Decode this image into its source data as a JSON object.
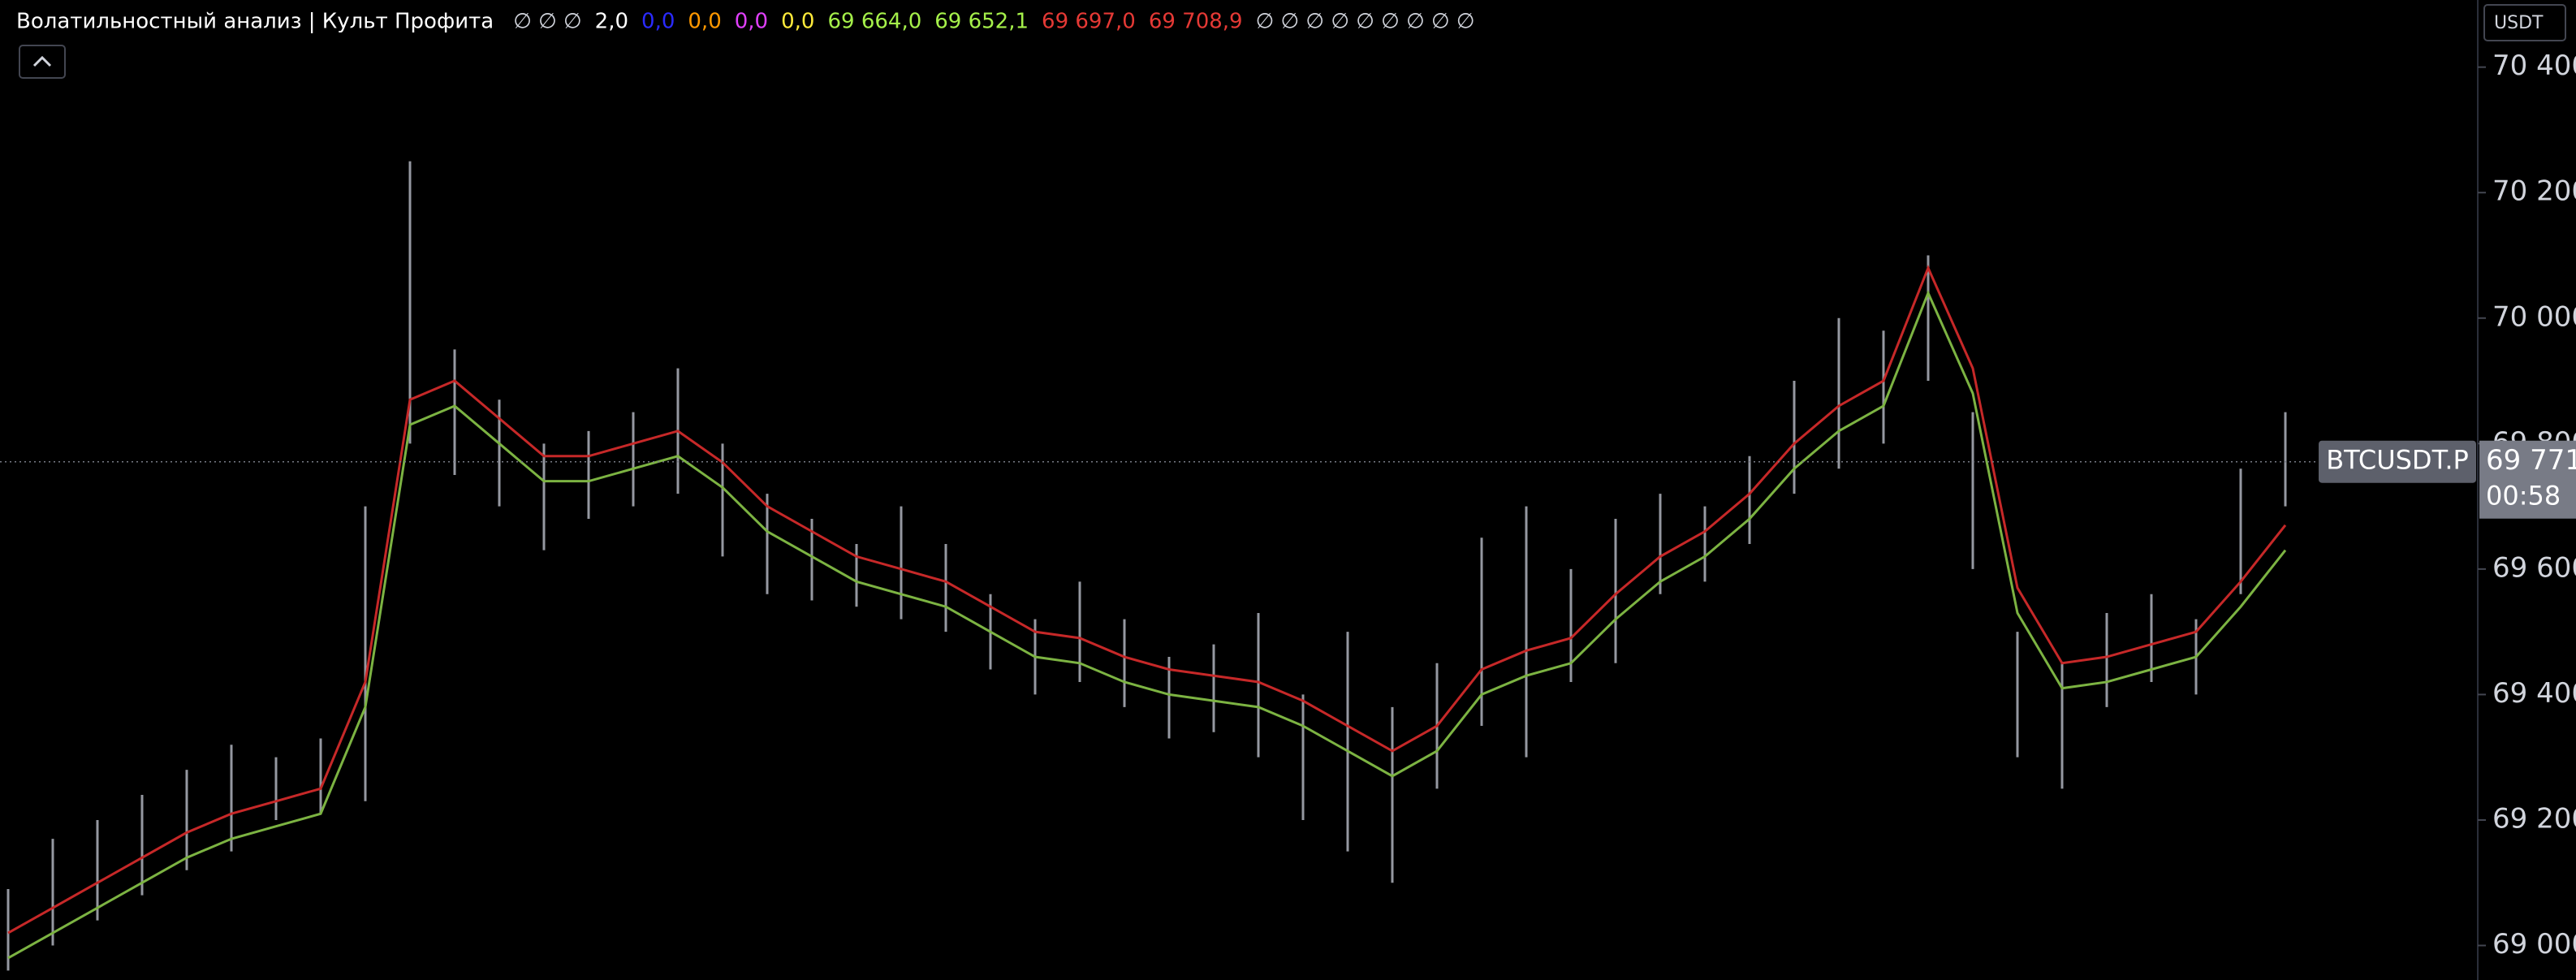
{
  "header": {
    "title": "Волатильностный анализ | Культ Профита",
    "items": [
      {
        "text": "∅ ∅ ∅",
        "color": "#d1d4dc"
      },
      {
        "text": "2,0",
        "color": "#ffffff"
      },
      {
        "text": "0,0",
        "color": "#2a2aff"
      },
      {
        "text": "0,0",
        "color": "#ff9800"
      },
      {
        "text": "0,0",
        "color": "#e040fb"
      },
      {
        "text": "0,0",
        "color": "#ffeb3b"
      },
      {
        "text": "69 664,0",
        "color": "#a5f04a"
      },
      {
        "text": "69 652,1",
        "color": "#a5f04a"
      },
      {
        "text": "69 697,0",
        "color": "#e53935"
      },
      {
        "text": "69 708,9",
        "color": "#e53935"
      },
      {
        "text": "∅ ∅ ∅ ∅ ∅ ∅ ∅ ∅ ∅",
        "color": "#d1d4dc"
      }
    ]
  },
  "currency": "USDT",
  "chart_data": {
    "type": "range-bands",
    "ylim": [
      68945,
      70507
    ],
    "yticks": [
      {
        "value": 70400,
        "label": "70 400"
      },
      {
        "value": 70200,
        "label": "70 200"
      },
      {
        "value": 70000,
        "label": "70 000"
      },
      {
        "value": 69800,
        "label": "69 800"
      },
      {
        "value": 69600,
        "label": "69 600"
      },
      {
        "value": 69400,
        "label": "69 400"
      },
      {
        "value": 69200,
        "label": "69 200"
      },
      {
        "value": 69000,
        "label": "69 000"
      }
    ],
    "ranges": {
      "color": "#9598a1",
      "low": [
        68960,
        69000,
        69040,
        69080,
        69120,
        69150,
        69200,
        69210,
        69230,
        69800,
        69750,
        69700,
        69630,
        69680,
        69700,
        69720,
        69620,
        69560,
        69550,
        69540,
        69520,
        69500,
        69440,
        69400,
        69420,
        69380,
        69330,
        69340,
        69300,
        69200,
        69150,
        69100,
        69250,
        69350,
        69300,
        69420,
        69450,
        69560,
        69580,
        69640,
        69720,
        69760,
        69800,
        69900,
        69600,
        69300,
        69250,
        69380,
        69420,
        69400,
        69560,
        69700
      ],
      "high": [
        69090,
        69170,
        69200,
        69240,
        69280,
        69320,
        69300,
        69330,
        69700,
        70250,
        69950,
        69870,
        69800,
        69820,
        69850,
        69920,
        69800,
        69720,
        69680,
        69640,
        69700,
        69640,
        69560,
        69520,
        69580,
        69520,
        69460,
        69480,
        69530,
        69400,
        69500,
        69380,
        69450,
        69650,
        69700,
        69600,
        69680,
        69720,
        69700,
        69780,
        69900,
        70000,
        69980,
        70100,
        69850,
        69500,
        69450,
        69530,
        69560,
        69520,
        69760,
        69850
      ]
    },
    "bands": [
      {
        "color": "#c62828",
        "values": [
          69020,
          69060,
          69100,
          69140,
          69180,
          69210,
          69230,
          69250,
          69420,
          69870,
          69900,
          69840,
          69780,
          69780,
          69800,
          69820,
          69770,
          69700,
          69660,
          69620,
          69600,
          69580,
          69540,
          69500,
          69490,
          69460,
          69440,
          69430,
          69420,
          69390,
          69350,
          69310,
          69350,
          69440,
          69470,
          69490,
          69560,
          69620,
          69660,
          69720,
          69800,
          69860,
          69900,
          70080,
          69920,
          69570,
          69450,
          69460,
          69480,
          69500,
          69580,
          69670
        ]
      },
      {
        "color": "#7cb342",
        "values": [
          68980,
          69020,
          69060,
          69100,
          69140,
          69170,
          69190,
          69210,
          69380,
          69830,
          69860,
          69800,
          69740,
          69740,
          69760,
          69780,
          69730,
          69660,
          69620,
          69580,
          69560,
          69540,
          69500,
          69460,
          69450,
          69420,
          69400,
          69390,
          69380,
          69350,
          69310,
          69270,
          69310,
          69400,
          69430,
          69450,
          69520,
          69580,
          69620,
          69680,
          69760,
          69820,
          69860,
          70040,
          69880,
          69530,
          69410,
          69420,
          69440,
          69460,
          69540,
          69630
        ]
      }
    ],
    "last_price": {
      "value": 69771,
      "label": "69 771"
    },
    "symbol": "BTCUSDT.P",
    "countdown": "00:58"
  }
}
